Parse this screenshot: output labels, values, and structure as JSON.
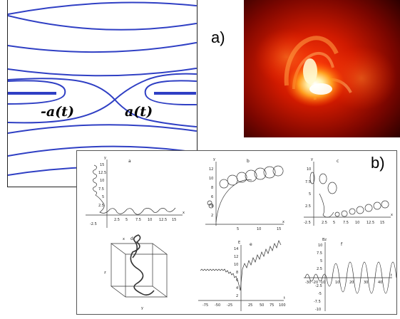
{
  "panel_a": {
    "tag": "a)",
    "left_label": "-a(t)",
    "right_label": "a(t)",
    "field_color": "#2f3fc4"
  },
  "panel_b": {
    "tag": "b)",
    "subplots": [
      {
        "letter": "a",
        "xlabel": "x",
        "ylabel": "y",
        "yticks": [
          "15",
          "12.5",
          "10",
          "7.5",
          "5",
          "2.5",
          "-2.5"
        ],
        "xticks": [
          "2.5",
          "5",
          "7.5",
          "10",
          "12.5",
          "15"
        ]
      },
      {
        "letter": "b",
        "xlabel": "x",
        "ylabel": "y",
        "yticks": [
          "12",
          "10",
          "8",
          "6",
          "4",
          "2"
        ],
        "xticks": [
          "5",
          "10",
          "15"
        ]
      },
      {
        "letter": "c",
        "xlabel": "x",
        "ylabel": "y",
        "yticks": [
          "10",
          "7.5",
          "5",
          "2.5"
        ],
        "xticks": [
          "-2.5",
          "2.5",
          "5",
          "7.5",
          "10",
          "12.5",
          "15"
        ]
      },
      {
        "letter": "d",
        "xlabel": "x",
        "ylabel": "y",
        "zlabel": "z"
      },
      {
        "letter": "e",
        "xlabel": "t",
        "ylabel": "E",
        "yticks": [
          "14",
          "12",
          "10",
          "8",
          "6",
          "4",
          "2"
        ],
        "xticks": [
          "-75",
          "-50",
          "-25",
          "25",
          "50",
          "75",
          "100"
        ]
      },
      {
        "letter": "f",
        "xlabel": "t",
        "ylabel": "Bz",
        "yticks": [
          "10",
          "7.5",
          "5",
          "2.5",
          "-2.5",
          "-5",
          "-7.5",
          "-10"
        ],
        "xticks": [
          "-30",
          "-20",
          "-10",
          "10",
          "20",
          "30",
          "40"
        ]
      }
    ]
  },
  "colors": {
    "field_lines": "#2f3fc4",
    "plot_ink": "#333333",
    "frame": "#555555"
  }
}
